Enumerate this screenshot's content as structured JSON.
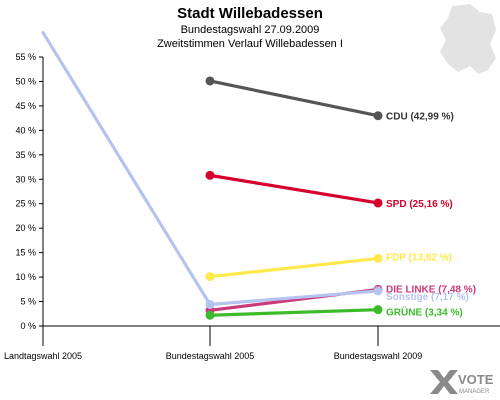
{
  "chart_data": {
    "type": "line",
    "title": "Stadt Willebadessen",
    "subtitle": "Bundestagswahl 27.09.2009",
    "subtitle2": "Zweitstimmen Verlauf Willebadessen I",
    "x": [
      "Landtagswahl 2005",
      "Bundestagswahl 2005",
      "Bundestagswahl 2009"
    ],
    "yticks": [
      "0 %",
      "5 %",
      "10 %",
      "15 %",
      "20 %",
      "25 %",
      "30 %",
      "35 %",
      "40 %",
      "45 %",
      "50 %",
      "55 %"
    ],
    "ylim": [
      0,
      55
    ],
    "grid": false,
    "series": [
      {
        "name": "CDU",
        "label": "CDU (42,99 %)",
        "color": "#555555",
        "values": [
          null,
          50.1,
          42.99
        ]
      },
      {
        "name": "SPD",
        "label": "SPD (25,16 %)",
        "color": "#d6002d",
        "values": [
          null,
          30.8,
          25.16
        ]
      },
      {
        "name": "FDP",
        "label": "FDP (13,82 %)",
        "color": "#ffe94d",
        "values": [
          null,
          10.1,
          13.82
        ]
      },
      {
        "name": "DIE LINKE",
        "label": "DIE LINKE (7,48 %)",
        "color": "#cc3a7a",
        "values": [
          null,
          3.2,
          7.48
        ]
      },
      {
        "name": "Sonstige",
        "label": "Sonstige (7,17 %)",
        "color": "#b4c4ee",
        "values": [
          60.0,
          4.4,
          7.17
        ]
      },
      {
        "name": "GRÜNE",
        "label": "GRÜNE (3,34 %)",
        "color": "#3cbc2a",
        "values": [
          null,
          2.2,
          3.34
        ]
      }
    ]
  },
  "branding": {
    "logo_line1": "VOTE",
    "logo_line2": "MANAGER",
    "map_icon": "germany-map-icon"
  }
}
